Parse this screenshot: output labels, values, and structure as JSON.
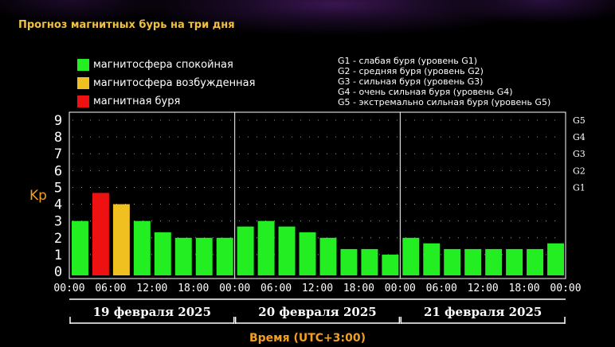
{
  "title": "Прогноз магнитных бурь на три дня",
  "legend": {
    "status": [
      {
        "label": "магнитосфера спокойная",
        "color": "#22ee22"
      },
      {
        "label": "магнитосфера возбужденная",
        "color": "#f0c020"
      },
      {
        "label": "магнитная буря",
        "color": "#ee1111"
      }
    ],
    "storm_levels": [
      "G1 - слабая буря (уровень G1)",
      "G2 - средняя буря (уровень G2)",
      "G3 - сильная буря (уровень G3)",
      "G4 - очень сильная буря (уровень G4)",
      "G5 - экстремально сильная буря (уровень G5)"
    ]
  },
  "chart_data": {
    "type": "bar",
    "ylabel": "Kp",
    "xlabel": "Время (UTC+3:00)",
    "ylim": [
      0,
      9
    ],
    "y_ticks": [
      "0",
      "1",
      "2",
      "3",
      "4",
      "5",
      "6",
      "7",
      "8",
      "9"
    ],
    "right_ticks": [
      {
        "label": "G1",
        "kp": 5
      },
      {
        "label": "G2",
        "kp": 6
      },
      {
        "label": "G3",
        "kp": 7
      },
      {
        "label": "G4",
        "kp": 8
      },
      {
        "label": "G5",
        "kp": 9
      }
    ],
    "days": [
      {
        "date": "19 февраля 2025",
        "x_ticks": [
          "00:00",
          "06:00",
          "12:00",
          "18:00"
        ],
        "values": [
          3,
          4.67,
          4,
          3,
          2.33,
          2,
          2,
          2
        ],
        "colors": [
          "#22ee22",
          "#ee1111",
          "#f0c020",
          "#22ee22",
          "#22ee22",
          "#22ee22",
          "#22ee22",
          "#22ee22"
        ]
      },
      {
        "date": "20 февраля 2025",
        "x_ticks": [
          "00:00",
          "06:00",
          "12:00",
          "18:00"
        ],
        "values": [
          2.67,
          3,
          2.67,
          2.33,
          2,
          1.33,
          1.33,
          1
        ],
        "colors": [
          "#22ee22",
          "#22ee22",
          "#22ee22",
          "#22ee22",
          "#22ee22",
          "#22ee22",
          "#22ee22",
          "#22ee22"
        ]
      },
      {
        "date": "21 февраля 2025",
        "x_ticks": [
          "00:00",
          "06:00",
          "12:00",
          "18:00",
          "00:00"
        ],
        "values": [
          2,
          1.67,
          1.33,
          1.33,
          1.33,
          1.33,
          1.33,
          1.67
        ],
        "colors": [
          "#22ee22",
          "#22ee22",
          "#22ee22",
          "#22ee22",
          "#22ee22",
          "#22ee22",
          "#22ee22",
          "#22ee22"
        ]
      }
    ],
    "grid": true
  }
}
